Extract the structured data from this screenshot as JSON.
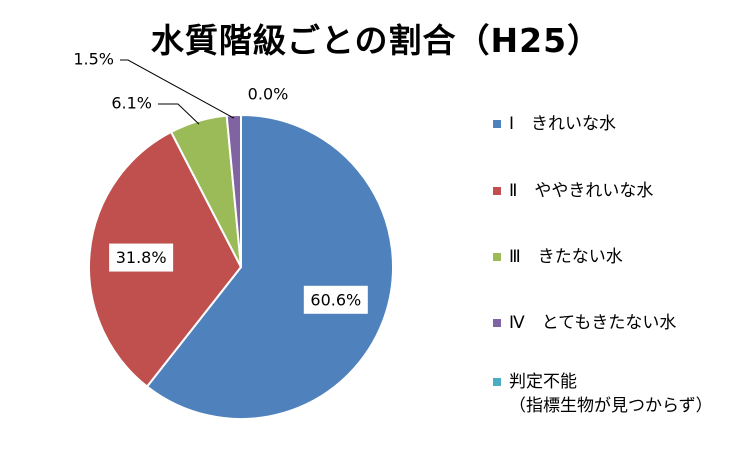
{
  "chart_data": {
    "type": "pie",
    "title": "水質階級ごとの割合（H25）",
    "categories": [
      "Ⅰ　きれいな水",
      "Ⅱ　ややきれいな水",
      "Ⅲ　きたない水",
      "Ⅳ　とてもきたない水",
      "判定不能（指標生物が見つからず）"
    ],
    "values": [
      60.6,
      31.8,
      6.1,
      1.5,
      0.0
    ],
    "data_labels": [
      "60.6%",
      "31.8%",
      "6.1%",
      "1.5%",
      "0.0%"
    ],
    "colors": [
      "#4F81BD",
      "#C0504D",
      "#9BBB59",
      "#8064A2",
      "#4BACC6"
    ],
    "legend_position": "right"
  },
  "legend": [
    {
      "label": "Ⅰ　きれいな水"
    },
    {
      "label": "Ⅱ　ややきれいな水"
    },
    {
      "label": "Ⅲ　きたない水"
    },
    {
      "label": "Ⅳ　とてもきたない水"
    },
    {
      "label": "判定不能",
      "sub": "（指標生物が見つからず）"
    }
  ]
}
